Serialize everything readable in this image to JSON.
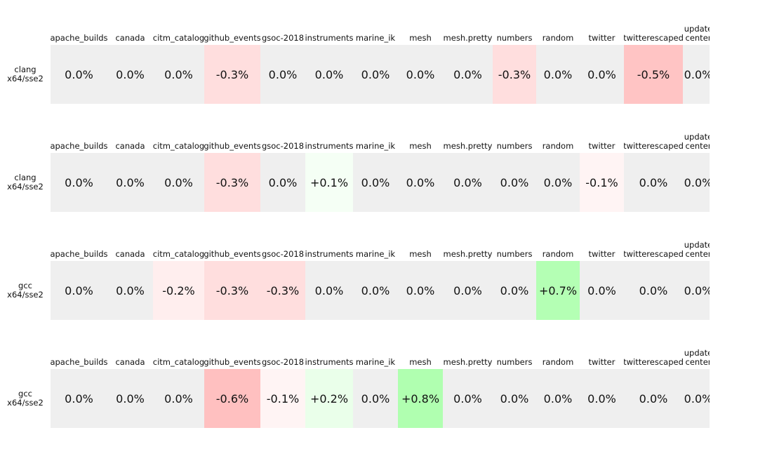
{
  "panels": [
    {
      "label": [
        "clang",
        "x64/sse2"
      ],
      "columns": [
        "apache_builds",
        "canada",
        "citm_catalog",
        "github_events",
        "gsoc-2018",
        "instruments",
        "marine_ik",
        "mesh",
        "mesh.pretty",
        "numbers",
        "random",
        "twitter",
        "twitterescaped",
        "update center"
      ],
      "cells": [
        "0.0%",
        "0.0%",
        "0.0%",
        "-0.3%",
        "0.0%",
        "0.0%",
        "0.0%",
        "0.0%",
        "0.0%",
        "-0.3%",
        "0.0%",
        "0.0%",
        "-0.5%",
        "0.0%"
      ],
      "colors": [
        "#efefef",
        "#efefef",
        "#efefef",
        "#ffdede",
        "#efefef",
        "#efefef",
        "#efefef",
        "#efefef",
        "#efefef",
        "#ffdede",
        "#efefef",
        "#efefef",
        "#ffc4c4",
        "#efefef"
      ]
    },
    {
      "label": [
        "clang",
        "x64/sse2"
      ],
      "columns": [
        "apache_builds",
        "canada",
        "citm_catalog",
        "github_events",
        "gsoc-2018",
        "instruments",
        "marine_ik",
        "mesh",
        "mesh.pretty",
        "numbers",
        "random",
        "twitter",
        "twitterescaped",
        "update center"
      ],
      "cells": [
        "0.0%",
        "0.0%",
        "0.0%",
        "-0.3%",
        "0.0%",
        "+0.1%",
        "0.0%",
        "0.0%",
        "0.0%",
        "0.0%",
        "0.0%",
        "-0.1%",
        "0.0%",
        "0.0%"
      ],
      "colors": [
        "#efefef",
        "#efefef",
        "#efefef",
        "#ffdede",
        "#efefef",
        "#f5fff5",
        "#efefef",
        "#efefef",
        "#efefef",
        "#efefef",
        "#efefef",
        "#fff4f4",
        "#efefef",
        "#efefef"
      ]
    },
    {
      "label": [
        "gcc",
        "x64/sse2"
      ],
      "columns": [
        "apache_builds",
        "canada",
        "citm_catalog",
        "github_events",
        "gsoc-2018",
        "instruments",
        "marine_ik",
        "mesh",
        "mesh.pretty",
        "numbers",
        "random",
        "twitter",
        "twitterescaped",
        "update center"
      ],
      "cells": [
        "0.0%",
        "0.0%",
        "-0.2%",
        "-0.3%",
        "-0.3%",
        "0.0%",
        "0.0%",
        "0.0%",
        "0.0%",
        "0.0%",
        "+0.7%",
        "0.0%",
        "0.0%",
        "0.0%"
      ],
      "colors": [
        "#efefef",
        "#efefef",
        "#ffeeee",
        "#ffdede",
        "#ffdede",
        "#efefef",
        "#efefef",
        "#efefef",
        "#efefef",
        "#efefef",
        "#b4ffb4",
        "#efefef",
        "#efefef",
        "#efefef"
      ]
    },
    {
      "label": [
        "gcc",
        "x64/sse2"
      ],
      "columns": [
        "apache_builds",
        "canada",
        "citm_catalog",
        "github_events",
        "gsoc-2018",
        "instruments",
        "marine_ik",
        "mesh",
        "mesh.pretty",
        "numbers",
        "random",
        "twitter",
        "twitterescaped",
        "update center"
      ],
      "cells": [
        "0.0%",
        "0.0%",
        "0.0%",
        "-0.6%",
        "-0.1%",
        "+0.2%",
        "0.0%",
        "+0.8%",
        "0.0%",
        "0.0%",
        "0.0%",
        "0.0%",
        "0.0%",
        "0.0%"
      ],
      "colors": [
        "#efefef",
        "#efefef",
        "#efefef",
        "#ffc0c0",
        "#fff4f4",
        "#eaffea",
        "#efefef",
        "#b0ffb0",
        "#efefef",
        "#efefef",
        "#efefef",
        "#efefef",
        "#efefef",
        "#efefef"
      ]
    }
  ]
}
